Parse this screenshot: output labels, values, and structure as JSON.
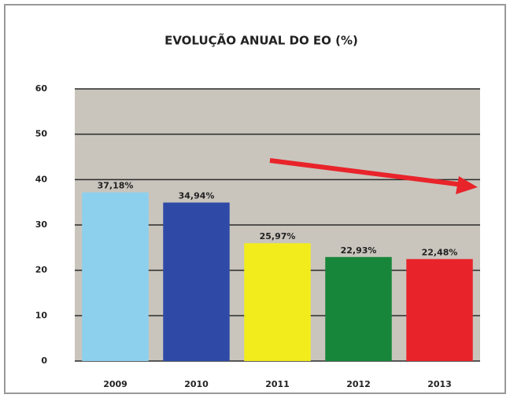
{
  "chart_data": {
    "type": "bar",
    "title": "EVOLUÇÃO ANUAL DO EO    (%)",
    "categories": [
      "2009",
      "2010",
      "2011",
      "2012",
      "2013"
    ],
    "values": [
      37.18,
      34.94,
      25.97,
      22.93,
      22.48
    ],
    "value_labels": [
      "37,18%",
      "34,94%",
      "25,97%",
      "22,93%",
      "22,48%"
    ],
    "colors": [
      "#8dd0ee",
      "#2f4aa6",
      "#f2ec1c",
      "#17863a",
      "#e8242a"
    ],
    "ylim": [
      0,
      60
    ],
    "yticks": [
      0,
      10,
      20,
      30,
      40,
      50,
      60
    ],
    "grid": true
  }
}
